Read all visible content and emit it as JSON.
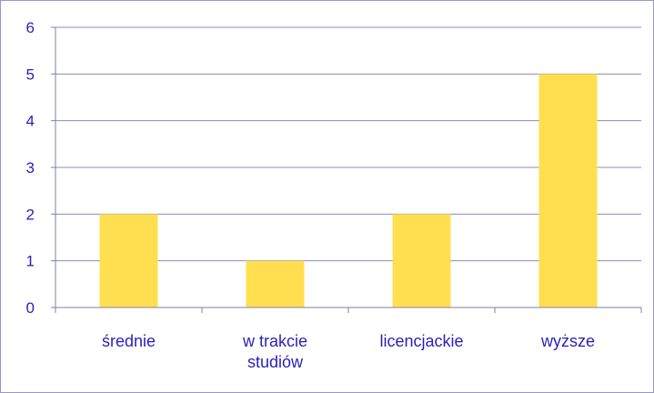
{
  "chart_data": {
    "type": "bar",
    "categories": [
      "średnie",
      "w trakcie\nstudiów",
      "licencjackie",
      "wyższe"
    ],
    "values": [
      2,
      1,
      2,
      5
    ],
    "title": "",
    "xlabel": "",
    "ylabel": "",
    "ylim": [
      0,
      6
    ],
    "yticks": [
      "0",
      "1",
      "2",
      "3",
      "4",
      "5",
      "6"
    ],
    "grid": true,
    "legend": "none",
    "colors": {
      "bar": "#ffdf4f",
      "grid": "#8c89c4",
      "text": "#2a1fb8",
      "axis": "#7f7fa8"
    }
  }
}
